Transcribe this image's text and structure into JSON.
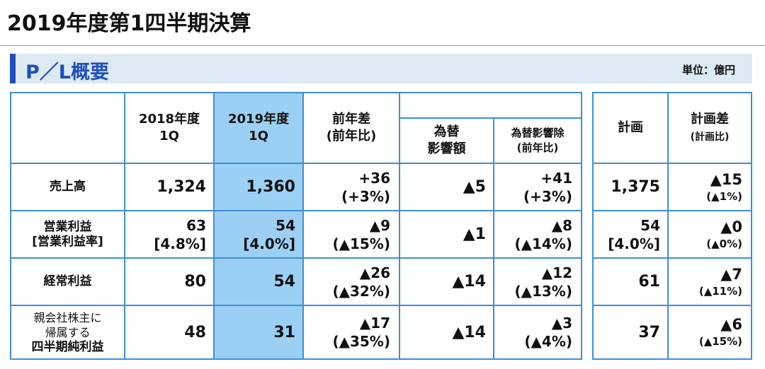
{
  "page": {
    "title": "2019年度第1四半期決算"
  },
  "section": {
    "title": "P／L概要",
    "unit": "単位：億円"
  },
  "headers": {
    "fy2018": [
      "2018年度",
      "1Q"
    ],
    "fy2019": [
      "2019年度",
      "1Q"
    ],
    "yoy": [
      "前年差",
      "(前年比)"
    ],
    "fx_impact": [
      "為替",
      "影響額"
    ],
    "ex_fx": [
      "為替影響除",
      "(前年比)"
    ],
    "plan": "計画",
    "plan_diff": [
      "計画差",
      "(計画比)"
    ]
  },
  "rows": [
    {
      "label": [
        "売上高"
      ],
      "fy2018": [
        "1,324"
      ],
      "fy2019": [
        "1,360"
      ],
      "yoy": [
        "+36",
        "(+3%)"
      ],
      "fx": "▲5",
      "ex_fx": [
        "+41",
        "(+3%)"
      ],
      "plan": [
        "1,375"
      ],
      "plan_diff": [
        "▲15",
        "(▲1%)"
      ]
    },
    {
      "label": [
        "営業利益",
        "[営業利益率]"
      ],
      "fy2018": [
        "63",
        "[4.8%]"
      ],
      "fy2019": [
        "54",
        "[4.0%]"
      ],
      "yoy": [
        "▲9",
        "(▲15%)"
      ],
      "fx": "▲1",
      "ex_fx": [
        "▲8",
        "(▲14%)"
      ],
      "plan": [
        "54",
        "[4.0%]"
      ],
      "plan_diff": [
        "▲0",
        "(▲0%)"
      ]
    },
    {
      "label": [
        "経常利益"
      ],
      "fy2018": [
        "80"
      ],
      "fy2019": [
        "54"
      ],
      "yoy": [
        "▲26",
        "(▲32%)"
      ],
      "fx": "▲14",
      "ex_fx": [
        "▲12",
        "(▲13%)"
      ],
      "plan": [
        "61"
      ],
      "plan_diff": [
        "▲7",
        "(▲11%)"
      ]
    },
    {
      "label": [
        "親会社株主に",
        "帰属する",
        "四半期純利益"
      ],
      "fy2018": [
        "48"
      ],
      "fy2019": [
        "31"
      ],
      "yoy": [
        "▲17",
        "(▲35%)"
      ],
      "fx": "▲14",
      "ex_fx": [
        "▲3",
        "(▲4%)"
      ],
      "plan": [
        "37"
      ],
      "plan_diff": [
        "▲6",
        "(▲15%)"
      ]
    }
  ]
}
